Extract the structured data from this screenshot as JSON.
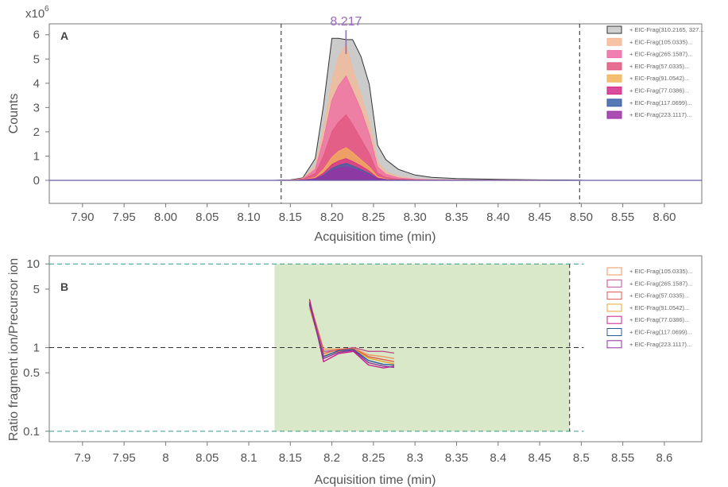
{
  "chart_data": [
    {
      "type": "area",
      "panel_label": "A",
      "xlabel": "Acquisition time (min)",
      "ylabel": "Counts",
      "y_multiplier": "x10",
      "y_multiplier_exp": "6",
      "xlim": [
        7.86,
        8.645
      ],
      "ylim": [
        -0.95,
        6.45
      ],
      "x_ticks": [
        "7.90",
        "7.95",
        "8.00",
        "8.05",
        "8.10",
        "8.15",
        "8.20",
        "8.25",
        "8.30",
        "8.35",
        "8.40",
        "8.45",
        "8.50",
        "8.55",
        "8.60"
      ],
      "y_ticks": [
        "0",
        "1",
        "2",
        "3",
        "4",
        "5",
        "6"
      ],
      "vlines": [
        8.139,
        8.498
      ],
      "peak_label": "8.217",
      "peak_x": 8.217,
      "x": [
        8.13,
        8.15,
        8.165,
        8.18,
        8.19,
        8.2,
        8.208,
        8.217,
        8.225,
        8.235,
        8.245,
        8.255,
        8.265,
        8.28,
        8.3,
        8.32,
        8.35,
        8.4,
        8.45,
        8.5
      ],
      "series": [
        {
          "name": "+ EIC-Frag(310.2165, 327...",
          "color": "#c8c8c8",
          "values": [
            0,
            0.02,
            0.1,
            0.9,
            3.1,
            5.85,
            5.85,
            5.8,
            5.8,
            5.1,
            3.95,
            1.45,
            0.85,
            0.45,
            0.22,
            0.12,
            0.07,
            0.04,
            0.02,
            0.01
          ]
        },
        {
          "name": "+ EIC-Frag(105.0335)...",
          "color": "#f5b896",
          "values": [
            0,
            0.01,
            0.08,
            0.6,
            2.1,
            4.1,
            5.1,
            5.6,
            4.6,
            3.5,
            2.4,
            0.75,
            0.35,
            0.15,
            0.06,
            0.03,
            0.02,
            0.01,
            0.01,
            0
          ]
        },
        {
          "name": "+ EIC-Frag(265.1587)...",
          "color": "#ee6aa4",
          "values": [
            0,
            0.01,
            0.06,
            0.45,
            1.7,
            3.3,
            3.9,
            4.3,
            3.7,
            2.9,
            1.9,
            0.55,
            0.25,
            0.1,
            0.04,
            0.02,
            0.01,
            0.01,
            0,
            0
          ]
        },
        {
          "name": "+ EIC-Frag(57.0335)...",
          "color": "#e0567f",
          "values": [
            0,
            0.01,
            0.04,
            0.28,
            1.0,
            2.0,
            2.4,
            2.7,
            2.3,
            1.7,
            1.1,
            0.3,
            0.12,
            0.05,
            0.02,
            0.01,
            0.01,
            0,
            0,
            0
          ]
        },
        {
          "name": "+ EIC-Frag(91.0542)...",
          "color": "#f2b45a",
          "values": [
            0,
            0.01,
            0.02,
            0.12,
            0.45,
            0.95,
            1.2,
            1.35,
            1.15,
            0.85,
            0.55,
            0.15,
            0.06,
            0.02,
            0.01,
            0,
            0,
            0,
            0,
            0
          ]
        },
        {
          "name": "+ EIC-Frag(77.0386)...",
          "color": "#d42a8c",
          "values": [
            0,
            0,
            0.02,
            0.08,
            0.3,
            0.65,
            0.8,
            0.9,
            0.78,
            0.6,
            0.38,
            0.1,
            0.04,
            0.02,
            0.01,
            0,
            0,
            0,
            0,
            0
          ]
        },
        {
          "name": "+ EIC-Frag(117.0699)...",
          "color": "#3a5fa8",
          "values": [
            0,
            0,
            0.01,
            0.06,
            0.22,
            0.5,
            0.62,
            0.7,
            0.6,
            0.45,
            0.28,
            0.07,
            0.03,
            0.01,
            0,
            0,
            0,
            0,
            0,
            0
          ]
        },
        {
          "name": "+ EIC-Frag(223.1117)...",
          "color": "#9b2fa6",
          "values": [
            0,
            0,
            0.01,
            0.05,
            0.18,
            0.4,
            0.5,
            0.55,
            0.48,
            0.36,
            0.22,
            0.06,
            0.02,
            0.01,
            0,
            0,
            0,
            0,
            0,
            0
          ]
        }
      ]
    },
    {
      "type": "line",
      "panel_label": "B",
      "xlabel": "Acquisition time (min)",
      "ylabel": "Ratio fragment ion/Precursor ion",
      "y_scale": "log",
      "xlim": [
        7.86,
        8.645
      ],
      "ylim": [
        0.075,
        12.5
      ],
      "x_ticks": [
        "7.9",
        "7.95",
        "8",
        "8.05",
        "8.1",
        "8.15",
        "8.2",
        "8.25",
        "8.3",
        "8.35",
        "8.4",
        "8.45",
        "8.5",
        "8.55",
        "8.6"
      ],
      "y_ticks": [
        "10",
        "5",
        "1",
        "0.5",
        "0.1"
      ],
      "band": [
        8.131,
        8.486
      ],
      "band_color": "#d8e8c8",
      "hlines": [
        10,
        1,
        0.1
      ],
      "x": [
        8.173,
        8.19,
        8.208,
        8.226,
        8.244,
        8.262,
        8.275
      ],
      "series": [
        {
          "name": "+ EIC-Frag(105.0335)...",
          "color": "#f0945a",
          "values": [
            3.6,
            0.96,
            0.96,
            0.98,
            0.82,
            0.78,
            0.74
          ]
        },
        {
          "name": "+ EIC-Frag(265.1587)...",
          "color": "#c0508a",
          "values": [
            3.5,
            0.9,
            0.93,
            1.0,
            0.9,
            0.9,
            0.86
          ]
        },
        {
          "name": "+ EIC-Frag(57.0335)...",
          "color": "#e05a4e",
          "values": [
            3.2,
            0.85,
            0.95,
            0.97,
            0.78,
            0.72,
            0.68
          ]
        },
        {
          "name": "+ EIC-Frag(91.0542)...",
          "color": "#e8a632",
          "values": [
            3.0,
            0.8,
            0.9,
            0.96,
            0.75,
            0.68,
            0.64
          ]
        },
        {
          "name": "+ EIC-Frag(77.0386)...",
          "color": "#c81e8a",
          "values": [
            3.8,
            0.68,
            0.85,
            0.9,
            0.62,
            0.57,
            0.6
          ]
        },
        {
          "name": "+ EIC-Frag(117.0699)...",
          "color": "#2f5b9c",
          "values": [
            3.3,
            0.78,
            0.92,
            0.95,
            0.7,
            0.63,
            0.62
          ]
        },
        {
          "name": "+ EIC-Frag(223.1117)...",
          "color": "#8e2fa0",
          "values": [
            3.4,
            0.74,
            0.88,
            0.93,
            0.66,
            0.6,
            0.58
          ]
        }
      ]
    }
  ]
}
